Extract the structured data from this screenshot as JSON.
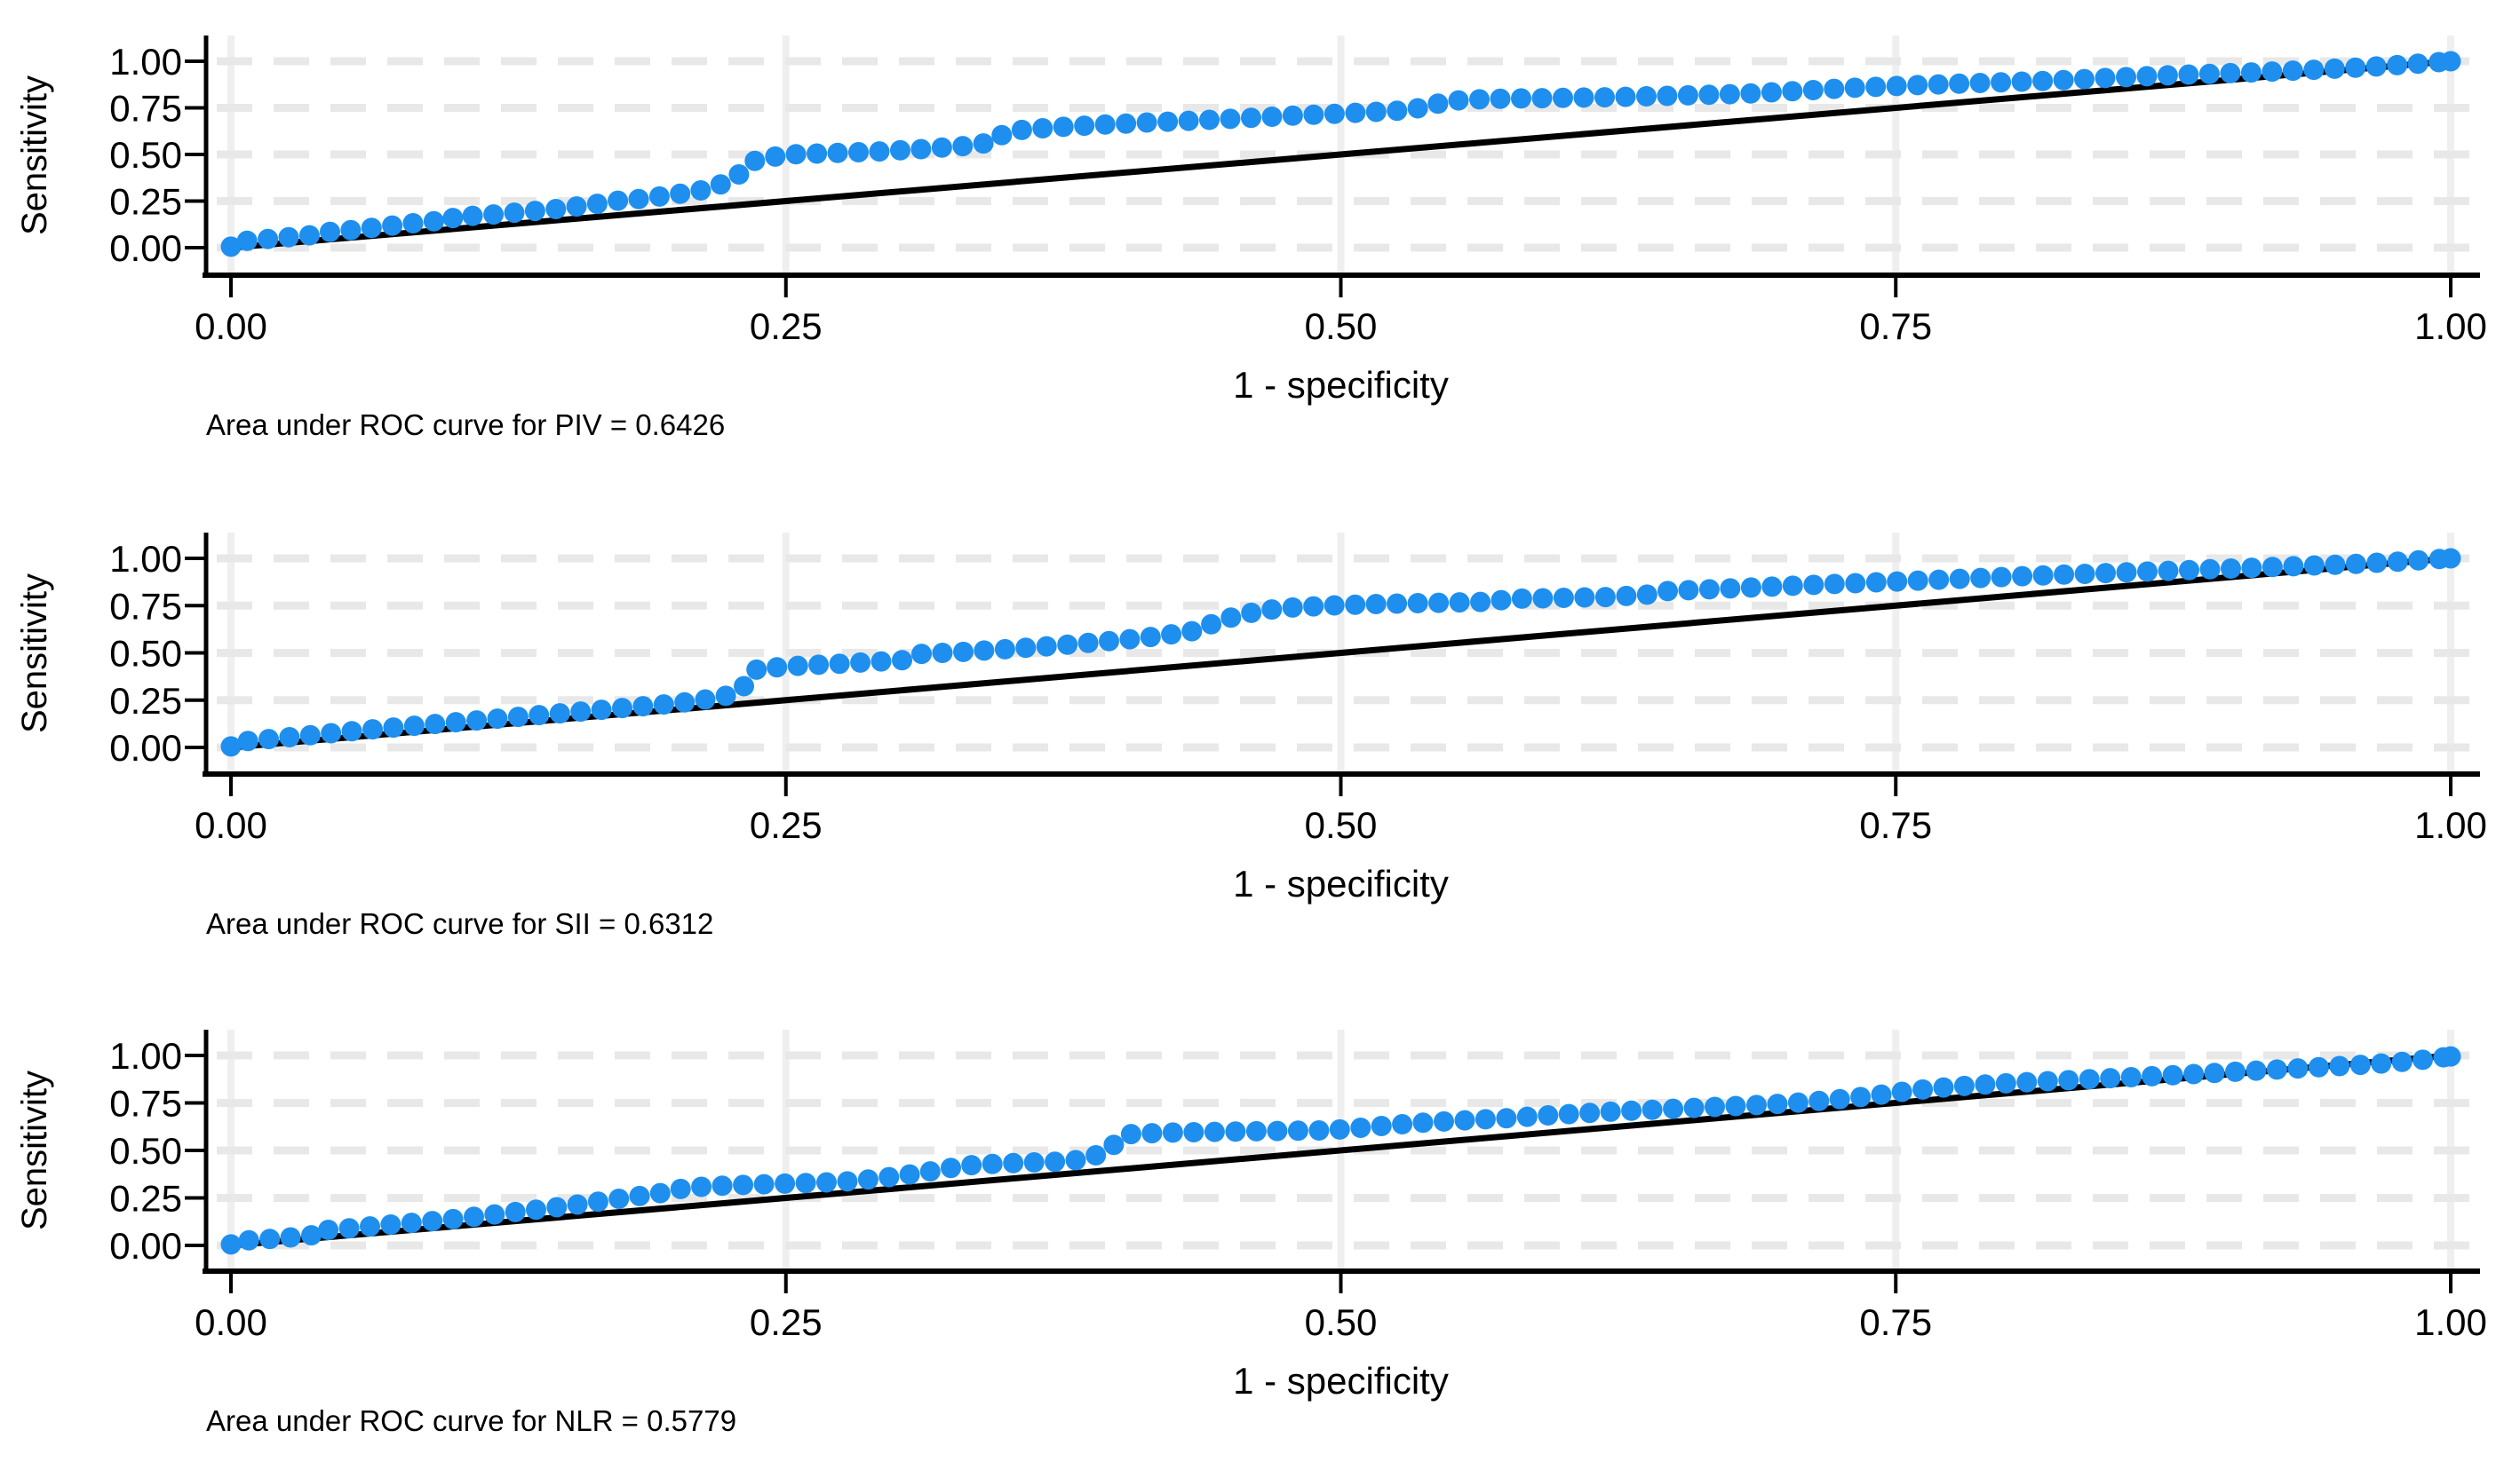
{
  "page": {
    "background": "#ffffff"
  },
  "colors": {
    "marker": "#1e8fee",
    "reference_line": "#000000",
    "axis": "#000000",
    "h_gridline": "#e8e8e8",
    "v_gridline": "#efefef"
  },
  "chart_data": [
    {
      "type": "scatter",
      "panel": "piv",
      "xlabel": "1 - specificity",
      "ylabel": "Sensitivity",
      "caption": "Area under ROC curve for PIV = 0.6426",
      "auc": "0.6426",
      "xlim": [
        0,
        1
      ],
      "ylim": [
        0,
        1
      ],
      "grid": true,
      "x_ticks": [
        "0.00",
        "0.25",
        "0.50",
        "0.75",
        "1.00"
      ],
      "y_ticks": [
        "0.00",
        "0.25",
        "0.50",
        "0.75",
        "1.00"
      ],
      "reference_line": [
        [
          0,
          0
        ],
        [
          1,
          1
        ]
      ],
      "roc_points": [
        [
          0.0,
          0.005
        ],
        [
          0.0,
          0.03
        ],
        [
          0.01,
          0.04
        ],
        [
          0.022,
          0.052
        ],
        [
          0.035,
          0.065
        ],
        [
          0.04,
          0.08
        ],
        [
          0.055,
          0.095
        ],
        [
          0.07,
          0.115
        ],
        [
          0.085,
          0.135
        ],
        [
          0.1,
          0.15
        ],
        [
          0.1,
          0.165
        ],
        [
          0.115,
          0.175
        ],
        [
          0.13,
          0.19
        ],
        [
          0.145,
          0.205
        ],
        [
          0.155,
          0.22
        ],
        [
          0.165,
          0.235
        ],
        [
          0.17,
          0.248
        ],
        [
          0.185,
          0.262
        ],
        [
          0.2,
          0.285
        ],
        [
          0.213,
          0.31
        ],
        [
          0.222,
          0.345
        ],
        [
          0.228,
          0.385
        ],
        [
          0.233,
          0.43
        ],
        [
          0.236,
          0.465
        ],
        [
          0.245,
          0.488
        ],
        [
          0.252,
          0.5
        ],
        [
          0.27,
          0.507
        ],
        [
          0.29,
          0.515
        ],
        [
          0.31,
          0.528
        ],
        [
          0.33,
          0.545
        ],
        [
          0.343,
          0.565
        ],
        [
          0.348,
          0.61
        ],
        [
          0.355,
          0.63
        ],
        [
          0.37,
          0.645
        ],
        [
          0.39,
          0.658
        ],
        [
          0.41,
          0.67
        ],
        [
          0.435,
          0.682
        ],
        [
          0.46,
          0.697
        ],
        [
          0.485,
          0.712
        ],
        [
          0.51,
          0.725
        ],
        [
          0.53,
          0.737
        ],
        [
          0.54,
          0.76
        ],
        [
          0.548,
          0.787
        ],
        [
          0.565,
          0.797
        ],
        [
          0.59,
          0.802
        ],
        [
          0.62,
          0.807
        ],
        [
          0.65,
          0.815
        ],
        [
          0.68,
          0.825
        ],
        [
          0.705,
          0.84
        ],
        [
          0.73,
          0.857
        ],
        [
          0.76,
          0.872
        ],
        [
          0.79,
          0.884
        ],
        [
          0.82,
          0.896
        ],
        [
          0.85,
          0.913
        ],
        [
          0.88,
          0.928
        ],
        [
          0.91,
          0.94
        ],
        [
          0.94,
          0.955
        ],
        [
          0.97,
          0.974
        ],
        [
          1.0,
          1.0
        ]
      ]
    },
    {
      "type": "scatter",
      "panel": "sii",
      "xlabel": "1 - specificity",
      "ylabel": "Sensitivity",
      "caption": "Area under ROC curve for SII = 0.6312",
      "auc": "0.6312",
      "xlim": [
        0,
        1
      ],
      "ylim": [
        0,
        1
      ],
      "grid": true,
      "x_ticks": [
        "0.00",
        "0.25",
        "0.50",
        "0.75",
        "1.00"
      ],
      "y_ticks": [
        "0.00",
        "0.25",
        "0.50",
        "0.75",
        "1.00"
      ],
      "reference_line": [
        [
          0,
          0
        ],
        [
          1,
          1
        ]
      ],
      "roc_points": [
        [
          0.0,
          0.005
        ],
        [
          0.0,
          0.025
        ],
        [
          0.015,
          0.042
        ],
        [
          0.03,
          0.058
        ],
        [
          0.045,
          0.075
        ],
        [
          0.06,
          0.092
        ],
        [
          0.08,
          0.112
        ],
        [
          0.1,
          0.132
        ],
        [
          0.12,
          0.152
        ],
        [
          0.14,
          0.172
        ],
        [
          0.16,
          0.192
        ],
        [
          0.18,
          0.212
        ],
        [
          0.2,
          0.232
        ],
        [
          0.213,
          0.252
        ],
        [
          0.224,
          0.275
        ],
        [
          0.23,
          0.31
        ],
        [
          0.234,
          0.36
        ],
        [
          0.237,
          0.415
        ],
        [
          0.25,
          0.428
        ],
        [
          0.27,
          0.44
        ],
        [
          0.29,
          0.453
        ],
        [
          0.305,
          0.463
        ],
        [
          0.311,
          0.495
        ],
        [
          0.33,
          0.505
        ],
        [
          0.35,
          0.52
        ],
        [
          0.37,
          0.537
        ],
        [
          0.39,
          0.556
        ],
        [
          0.41,
          0.578
        ],
        [
          0.425,
          0.6
        ],
        [
          0.437,
          0.622
        ],
        [
          0.443,
          0.66
        ],
        [
          0.453,
          0.695
        ],
        [
          0.465,
          0.725
        ],
        [
          0.48,
          0.742
        ],
        [
          0.5,
          0.753
        ],
        [
          0.522,
          0.76
        ],
        [
          0.545,
          0.765
        ],
        [
          0.565,
          0.77
        ],
        [
          0.578,
          0.786
        ],
        [
          0.6,
          0.791
        ],
        [
          0.622,
          0.796
        ],
        [
          0.638,
          0.808
        ],
        [
          0.646,
          0.826
        ],
        [
          0.662,
          0.834
        ],
        [
          0.68,
          0.843
        ],
        [
          0.7,
          0.853
        ],
        [
          0.722,
          0.864
        ],
        [
          0.745,
          0.875
        ],
        [
          0.768,
          0.886
        ],
        [
          0.79,
          0.897
        ],
        [
          0.812,
          0.908
        ],
        [
          0.84,
          0.92
        ],
        [
          0.868,
          0.932
        ],
        [
          0.896,
          0.944
        ],
        [
          0.924,
          0.956
        ],
        [
          0.952,
          0.968
        ],
        [
          0.976,
          0.982
        ],
        [
          1.0,
          1.0
        ]
      ]
    },
    {
      "type": "scatter",
      "panel": "nlr",
      "xlabel": "1 - specificity",
      "ylabel": "Sensitivity",
      "caption": "Area under ROC curve for NLR = 0.5779",
      "auc": "0.5779",
      "xlim": [
        0,
        1
      ],
      "ylim": [
        0,
        1
      ],
      "grid": true,
      "x_ticks": [
        "0.00",
        "0.25",
        "0.50",
        "0.75",
        "1.00"
      ],
      "y_ticks": [
        "0.00",
        "0.25",
        "0.50",
        "0.75",
        "1.00"
      ],
      "reference_line": [
        [
          0,
          0
        ],
        [
          1,
          1
        ]
      ],
      "roc_points": [
        [
          0.0,
          0.005
        ],
        [
          0.0,
          0.02
        ],
        [
          0.015,
          0.032
        ],
        [
          0.03,
          0.045
        ],
        [
          0.04,
          0.058
        ],
        [
          0.04,
          0.078
        ],
        [
          0.055,
          0.092
        ],
        [
          0.07,
          0.108
        ],
        [
          0.085,
          0.122
        ],
        [
          0.1,
          0.138
        ],
        [
          0.115,
          0.158
        ],
        [
          0.13,
          0.178
        ],
        [
          0.145,
          0.198
        ],
        [
          0.158,
          0.218
        ],
        [
          0.17,
          0.238
        ],
        [
          0.183,
          0.258
        ],
        [
          0.195,
          0.278
        ],
        [
          0.203,
          0.298
        ],
        [
          0.215,
          0.312
        ],
        [
          0.235,
          0.32
        ],
        [
          0.255,
          0.327
        ],
        [
          0.275,
          0.334
        ],
        [
          0.29,
          0.35
        ],
        [
          0.305,
          0.372
        ],
        [
          0.318,
          0.395
        ],
        [
          0.33,
          0.42
        ],
        [
          0.345,
          0.43
        ],
        [
          0.362,
          0.437
        ],
        [
          0.378,
          0.443
        ],
        [
          0.388,
          0.465
        ],
        [
          0.395,
          0.505
        ],
        [
          0.4,
          0.55
        ],
        [
          0.404,
          0.585
        ],
        [
          0.42,
          0.593
        ],
        [
          0.445,
          0.598
        ],
        [
          0.47,
          0.602
        ],
        [
          0.495,
          0.606
        ],
        [
          0.515,
          0.625
        ],
        [
          0.535,
          0.645
        ],
        [
          0.555,
          0.658
        ],
        [
          0.575,
          0.67
        ],
        [
          0.598,
          0.688
        ],
        [
          0.62,
          0.703
        ],
        [
          0.642,
          0.715
        ],
        [
          0.663,
          0.726
        ],
        [
          0.683,
          0.736
        ],
        [
          0.702,
          0.748
        ],
        [
          0.72,
          0.765
        ],
        [
          0.738,
          0.785
        ],
        [
          0.755,
          0.812
        ],
        [
          0.772,
          0.832
        ],
        [
          0.79,
          0.847
        ],
        [
          0.81,
          0.86
        ],
        [
          0.832,
          0.872
        ],
        [
          0.855,
          0.885
        ],
        [
          0.878,
          0.898
        ],
        [
          0.9,
          0.912
        ],
        [
          0.922,
          0.926
        ],
        [
          0.944,
          0.94
        ],
        [
          0.966,
          0.955
        ],
        [
          0.984,
          0.972
        ],
        [
          1.0,
          0.995
        ]
      ]
    }
  ]
}
